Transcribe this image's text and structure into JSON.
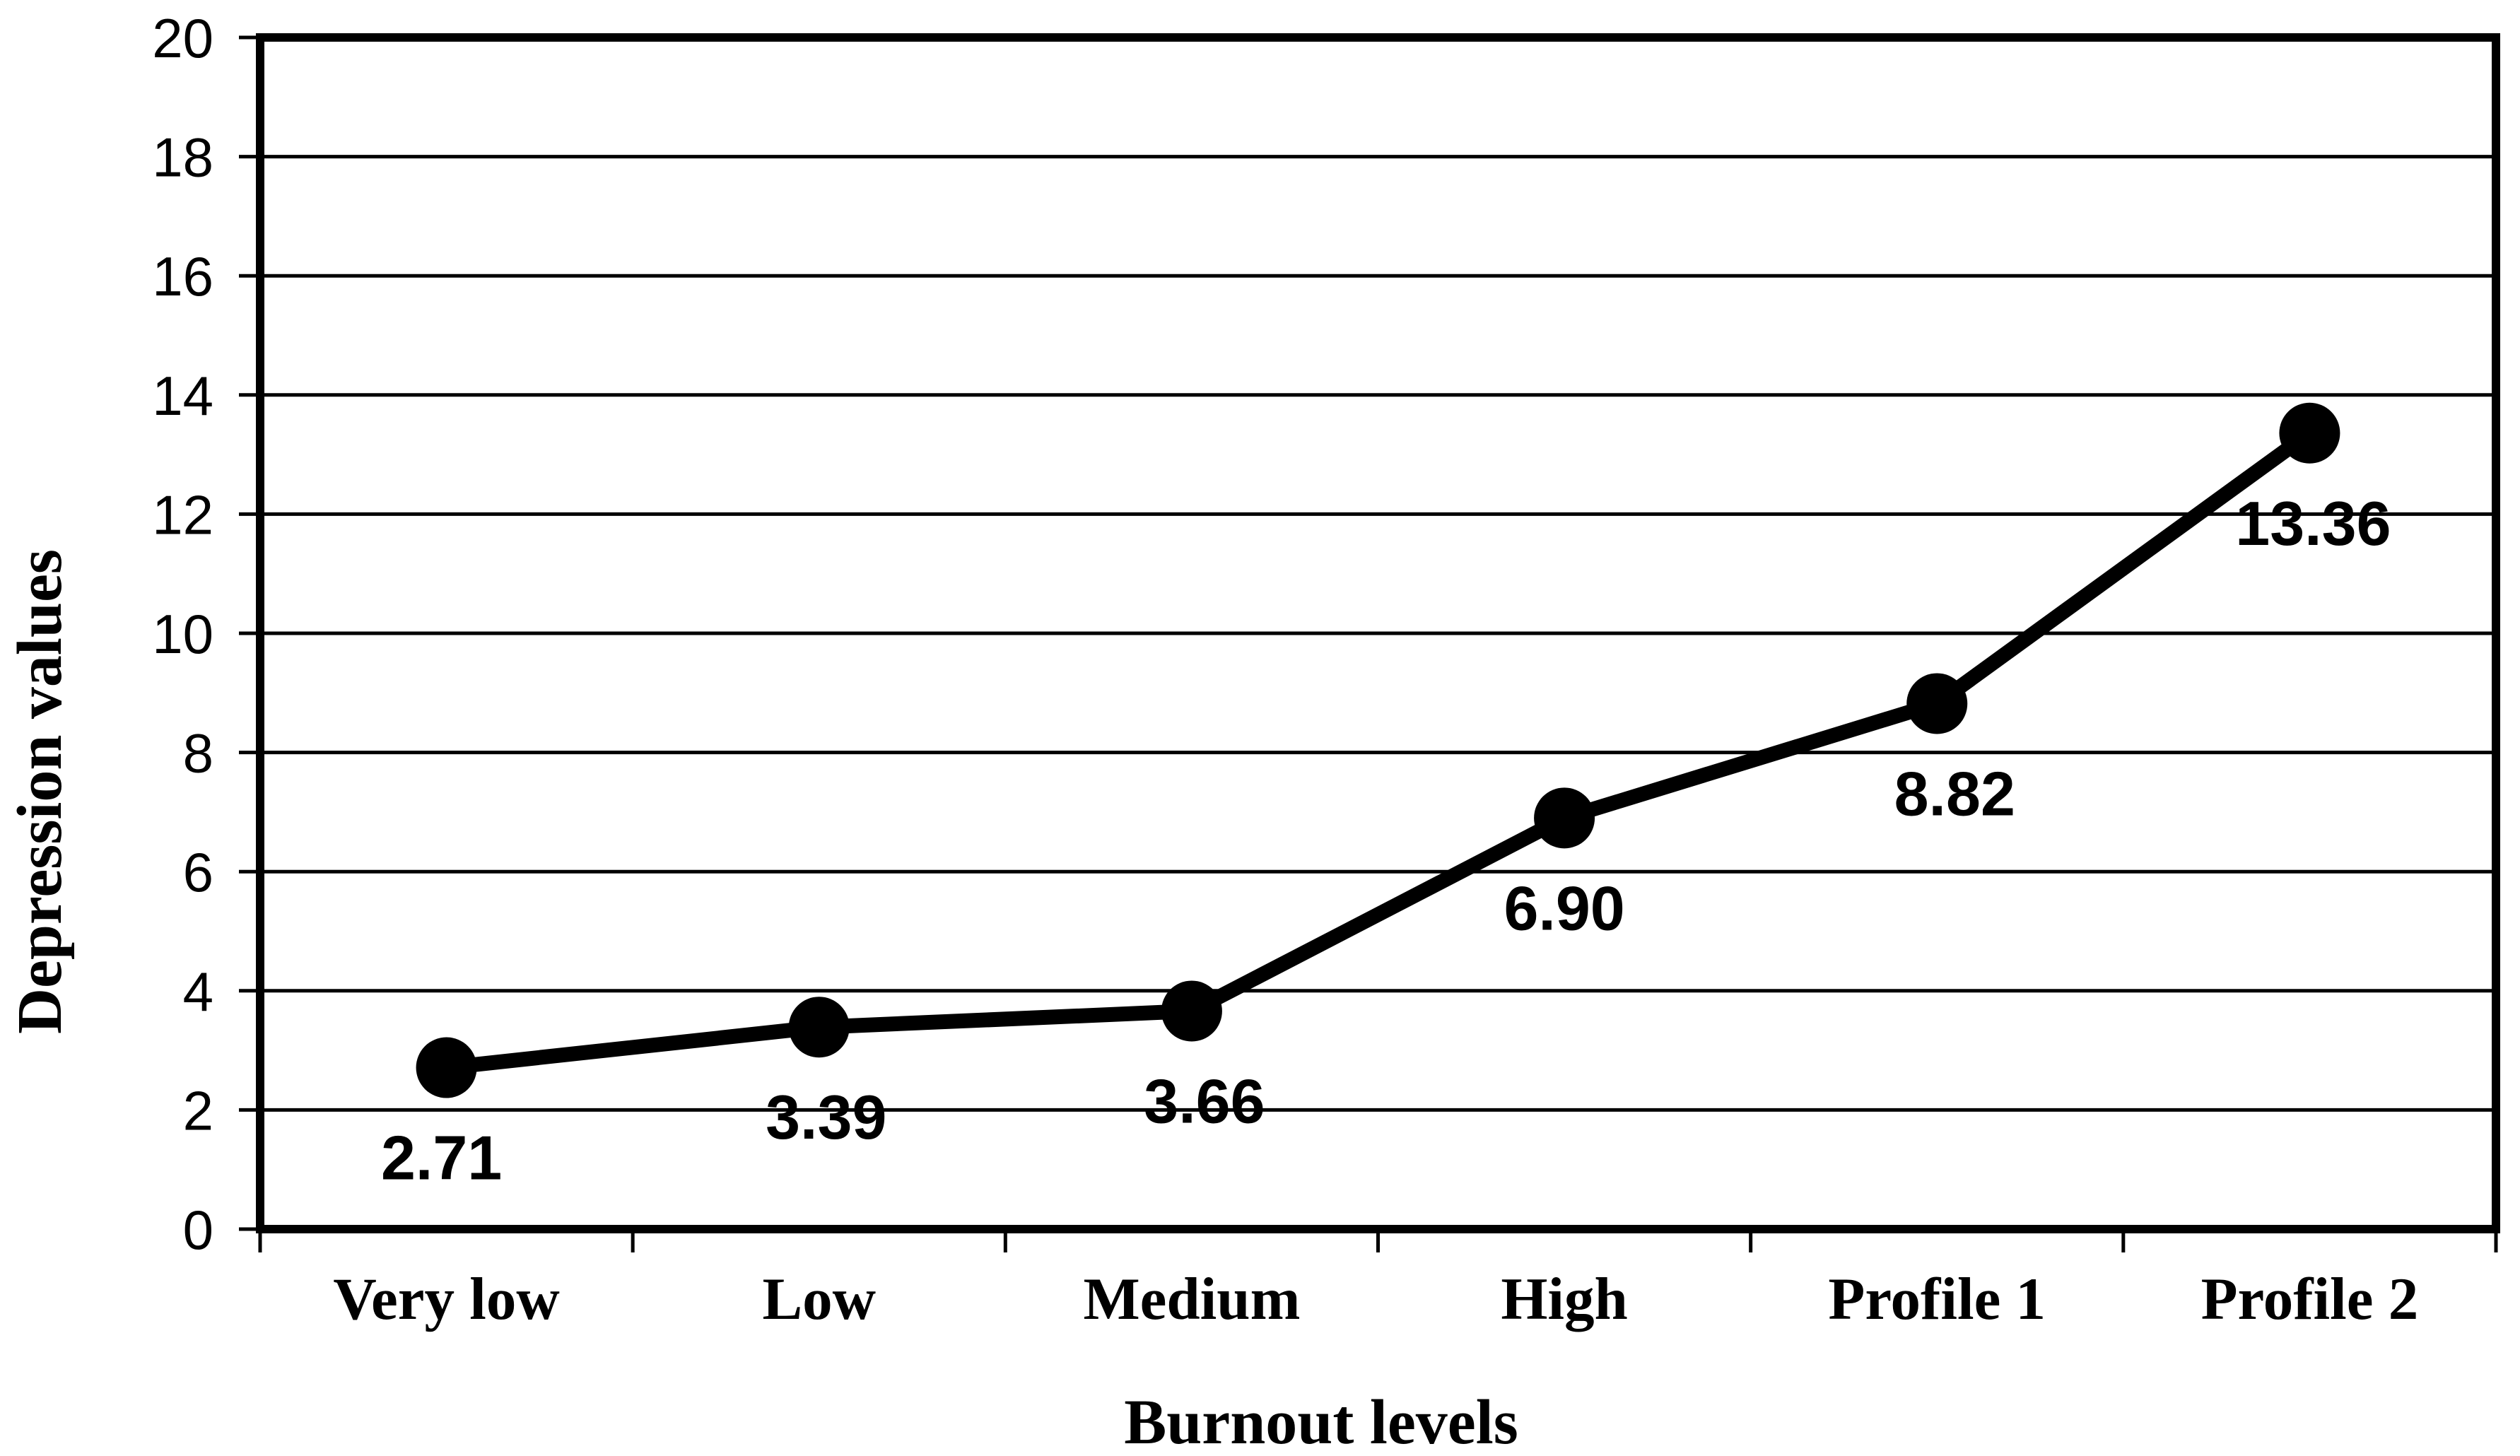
{
  "chart_data": {
    "type": "line",
    "title": "",
    "xlabel": "Burnout levels",
    "ylabel": "Depression values",
    "categories": [
      "Very low",
      "Low",
      "Medium",
      "High",
      "Profile 1",
      "Profile 2"
    ],
    "values": [
      2.71,
      3.39,
      3.66,
      6.9,
      8.82,
      13.36
    ],
    "point_labels": [
      "2.71",
      "3.39",
      "3.66",
      "6.90",
      "8.82",
      "13.36"
    ],
    "ylim": [
      0,
      20
    ],
    "yticks": [
      0,
      2,
      4,
      6,
      8,
      10,
      12,
      14,
      16,
      18,
      20
    ],
    "grid": true,
    "legend": "none",
    "line_color": "#000000",
    "marker_color": "#000000",
    "marker": "circle",
    "background": "#ffffff"
  }
}
